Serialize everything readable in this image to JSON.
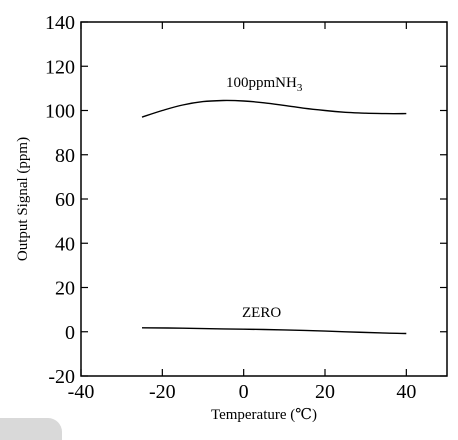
{
  "chart_data": {
    "type": "line",
    "title": "",
    "xlabel": "Temperature (℃)",
    "ylabel": "Output Signal (ppm)",
    "xlim": [
      -40,
      50
    ],
    "ylim": [
      -20,
      140
    ],
    "xticks": [
      -40,
      -20,
      0,
      20,
      40
    ],
    "yticks": [
      -20,
      0,
      20,
      40,
      60,
      80,
      100,
      120,
      140
    ],
    "grid": false,
    "legend": "none",
    "series": [
      {
        "label_main": "100ppmNH",
        "label_sub": "3",
        "x": [
          -25,
          -20,
          -15,
          -10,
          -5,
          0,
          5,
          10,
          15,
          20,
          25,
          30,
          35,
          40
        ],
        "y": [
          97,
          100,
          102.5,
          104,
          104.5,
          104.3,
          103.5,
          102.3,
          101,
          100,
          99.2,
          98.8,
          98.6,
          98.6
        ]
      },
      {
        "label_main": "ZERO",
        "label_sub": "",
        "x": [
          -25,
          -15,
          -5,
          5,
          15,
          25,
          35,
          40
        ],
        "y": [
          1.8,
          1.6,
          1.3,
          1.0,
          0.6,
          0.0,
          -0.6,
          -0.8
        ]
      }
    ]
  }
}
